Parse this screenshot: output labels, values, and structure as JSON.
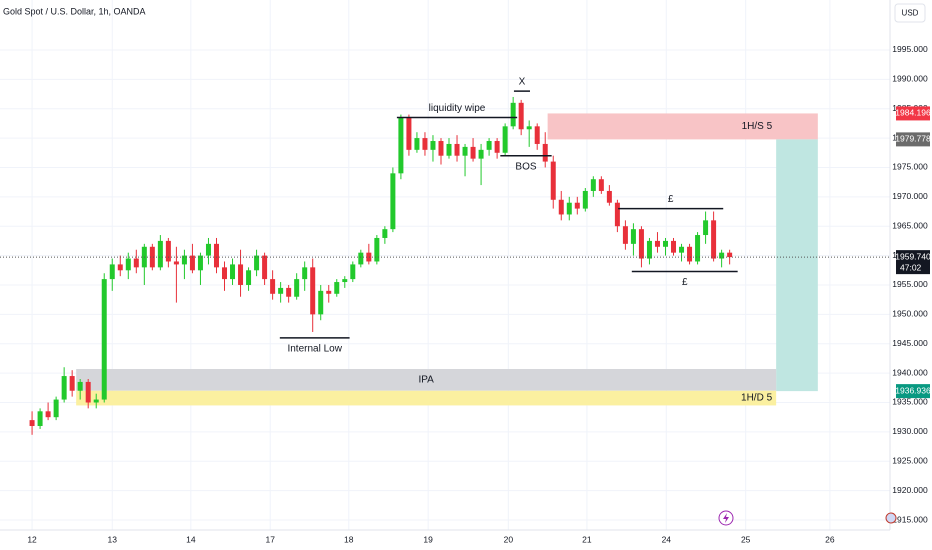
{
  "chart_data": {
    "type": "candlestick",
    "title": "Gold Spot / U.S. Dollar, 1h, OANDA",
    "currency": "USD",
    "up_color": "#22c92c",
    "down_color": "#e8303a",
    "xlim": [
      -4,
      107
    ],
    "ylim": [
      1913.3,
      2003.5
    ],
    "xticks": [
      {
        "value": 0,
        "label": "12"
      },
      {
        "value": 10,
        "label": "13"
      },
      {
        "value": 19.8,
        "label": "14"
      },
      {
        "value": 29.7,
        "label": "17"
      },
      {
        "value": 39.5,
        "label": "18"
      },
      {
        "value": 49.4,
        "label": "19"
      },
      {
        "value": 59.4,
        "label": "20"
      },
      {
        "value": 69.2,
        "label": "21"
      },
      {
        "value": 79.1,
        "label": "24"
      },
      {
        "value": 89,
        "label": "25"
      },
      {
        "value": 99.5,
        "label": "26"
      }
    ],
    "yticks": [
      {
        "value": 1915,
        "label": "1915.000"
      },
      {
        "value": 1920,
        "label": "1920.000"
      },
      {
        "value": 1925,
        "label": "1925.000"
      },
      {
        "value": 1930,
        "label": "1930.000"
      },
      {
        "value": 1935,
        "label": "1935.000"
      },
      {
        "value": 1940,
        "label": "1940.000"
      },
      {
        "value": 1945,
        "label": "1945.000"
      },
      {
        "value": 1950,
        "label": "1950.000"
      },
      {
        "value": 1955,
        "label": "1955.000"
      },
      {
        "value": 1960,
        "label": "1960.000"
      },
      {
        "value": 1965,
        "label": "1965.000"
      },
      {
        "value": 1970,
        "label": "1970.000"
      },
      {
        "value": 1975,
        "label": "1975.000"
      },
      {
        "value": 1980,
        "label": "1980.000"
      },
      {
        "value": 1985,
        "label": "1985.000"
      },
      {
        "value": 1990,
        "label": "1990.000"
      },
      {
        "value": 1995,
        "label": "1995.000"
      }
    ],
    "grid": true,
    "candles": [
      [
        1932,
        1933.5,
        1929.5,
        1931
      ],
      [
        1931,
        1934,
        1930.5,
        1933.5
      ],
      [
        1933.5,
        1935,
        1932,
        1932.5
      ],
      [
        1932.5,
        1936,
        1932,
        1935.5
      ],
      [
        1935.5,
        1941,
        1935,
        1939.5
      ],
      [
        1939.5,
        1940.5,
        1936,
        1937
      ],
      [
        1937,
        1939,
        1935.5,
        1938.5
      ],
      [
        1938.5,
        1939,
        1934,
        1935
      ],
      [
        1935,
        1936.5,
        1934,
        1935.5
      ],
      [
        1935.5,
        1957,
        1935,
        1956
      ],
      [
        1956,
        1959.5,
        1954,
        1958.5
      ],
      [
        1958.5,
        1960,
        1956.5,
        1957.5
      ],
      [
        1957.5,
        1960.5,
        1956,
        1959.5
      ],
      [
        1959.5,
        1961,
        1957,
        1958
      ],
      [
        1958,
        1962,
        1955,
        1961.5
      ],
      [
        1961.5,
        1962,
        1957.5,
        1958
      ],
      [
        1958,
        1963.5,
        1957.5,
        1962.5
      ],
      [
        1962.5,
        1963,
        1958,
        1959
      ],
      [
        1959,
        1961.5,
        1952,
        1958.5
      ],
      [
        1958.5,
        1961,
        1956,
        1960
      ],
      [
        1960,
        1962,
        1957,
        1957.5
      ],
      [
        1957.5,
        1960.5,
        1955,
        1960
      ],
      [
        1960,
        1963,
        1958.5,
        1962
      ],
      [
        1962,
        1963,
        1957,
        1958
      ],
      [
        1958,
        1959,
        1954,
        1956
      ],
      [
        1956,
        1959.5,
        1955,
        1958.5
      ],
      [
        1958.5,
        1961,
        1953,
        1955
      ],
      [
        1955,
        1958,
        1954,
        1957.5
      ],
      [
        1957.5,
        1961,
        1956.5,
        1960
      ],
      [
        1960,
        1960.5,
        1955,
        1956
      ],
      [
        1956,
        1957.5,
        1952.5,
        1953.5
      ],
      [
        1953.5,
        1955.5,
        1952,
        1954.5
      ],
      [
        1954.5,
        1955,
        1952,
        1953
      ],
      [
        1953,
        1957,
        1952.5,
        1956
      ],
      [
        1956,
        1959,
        1954,
        1958
      ],
      [
        1958,
        1959.5,
        1947,
        1950
      ],
      [
        1950,
        1955,
        1949,
        1954
      ],
      [
        1954,
        1955,
        1952,
        1953.5
      ],
      [
        1953.5,
        1956,
        1953,
        1955.5
      ],
      [
        1955.5,
        1956.5,
        1954.5,
        1956
      ],
      [
        1956,
        1959,
        1955.5,
        1958.5
      ],
      [
        1958.5,
        1961,
        1958,
        1960.5
      ],
      [
        1960.5,
        1962,
        1958.5,
        1959
      ],
      [
        1959,
        1963.5,
        1958.5,
        1963
      ],
      [
        1963,
        1965,
        1962,
        1964.5
      ],
      [
        1964.5,
        1975,
        1964,
        1974
      ],
      [
        1974,
        1984,
        1973,
        1983.5
      ],
      [
        1983.5,
        1984,
        1977,
        1978
      ],
      [
        1978,
        1981,
        1977.5,
        1980
      ],
      [
        1980,
        1981,
        1977,
        1978
      ],
      [
        1978,
        1980.5,
        1976,
        1979.5
      ],
      [
        1979.5,
        1980,
        1975.5,
        1977
      ],
      [
        1977,
        1980,
        1976.5,
        1979
      ],
      [
        1979,
        1980.5,
        1976,
        1977
      ],
      [
        1977,
        1979,
        1973.5,
        1978.5
      ],
      [
        1978.5,
        1980,
        1976,
        1976.5
      ],
      [
        1976.5,
        1979,
        1972,
        1978
      ],
      [
        1978,
        1980,
        1977,
        1979.5
      ],
      [
        1979.5,
        1980,
        1976.5,
        1977.5
      ],
      [
        1977.5,
        1982.5,
        1977,
        1982
      ],
      [
        1982,
        1987,
        1981.5,
        1986
      ],
      [
        1986,
        1986.5,
        1980.5,
        1981.5
      ],
      [
        1981.5,
        1983,
        1978.5,
        1982
      ],
      [
        1982,
        1982.5,
        1978,
        1979
      ],
      [
        1979,
        1981,
        1975,
        1976
      ],
      [
        1976,
        1977,
        1968,
        1969.5
      ],
      [
        1969.5,
        1971,
        1966,
        1967
      ],
      [
        1967,
        1970,
        1966,
        1969
      ],
      [
        1969,
        1970,
        1967,
        1968
      ],
      [
        1968,
        1971.5,
        1967.5,
        1971
      ],
      [
        1971,
        1973.5,
        1970,
        1973
      ],
      [
        1973,
        1973.5,
        1970.5,
        1971
      ],
      [
        1971,
        1972,
        1968.5,
        1969
      ],
      [
        1969,
        1969.5,
        1964,
        1965
      ],
      [
        1965,
        1966,
        1961,
        1962
      ],
      [
        1962,
        1965.5,
        1960,
        1964.5
      ],
      [
        1964.5,
        1965,
        1958,
        1959.5
      ],
      [
        1959.5,
        1963,
        1958.5,
        1962.5
      ],
      [
        1962.5,
        1964,
        1960.5,
        1961.5
      ],
      [
        1961.5,
        1963,
        1960,
        1962.5
      ],
      [
        1962.5,
        1963,
        1960,
        1960.5
      ],
      [
        1960.5,
        1962,
        1959,
        1961.5
      ],
      [
        1961.5,
        1962,
        1958.5,
        1959
      ],
      [
        1959,
        1964,
        1958.5,
        1963.5
      ],
      [
        1963.5,
        1967.5,
        1962,
        1966
      ],
      [
        1966,
        1967.5,
        1959,
        1959.5
      ],
      [
        1959.5,
        1961,
        1958,
        1960.5
      ],
      [
        1960.5,
        1961,
        1958.5,
        1959.74
      ]
    ],
    "zones": [
      {
        "label": "1H/S 5",
        "high": 1984.196,
        "low": 1979.778,
        "from": 64.3,
        "to": 98,
        "color": "#f8c4c6"
      },
      {
        "high": 1979.778,
        "low": 1936.936,
        "from": 92.8,
        "to": 98,
        "color": "#bfe6e1"
      },
      {
        "label": "IPA",
        "high": 1940.7,
        "low": 1937,
        "from": 5.5,
        "to": 92.8,
        "color": "#d5d6da"
      },
      {
        "label": "1H/D 5",
        "high": 1937,
        "low": 1934.5,
        "from": 5.5,
        "to": 92.8,
        "color": "#fbf0a0"
      }
    ],
    "lines": [
      {
        "label": "liquidity wipe",
        "price": 1983.5,
        "from": 45.5,
        "to": 60.5
      },
      {
        "label": "X",
        "price": 1988,
        "from": 60.1,
        "to": 62.1
      },
      {
        "label": "BOS",
        "price": 1977,
        "from": 58.4,
        "to": 64.8
      },
      {
        "label": "Internal Low",
        "price": 1946,
        "from": 30.9,
        "to": 39.6
      },
      {
        "label": "£",
        "price": 1968,
        "from": 73.1,
        "to": 86.2
      },
      {
        "label": "£",
        "price": 1957.3,
        "from": 74.8,
        "to": 88
      }
    ],
    "price_tags": [
      {
        "value": 1984.196,
        "color": "#f23645"
      },
      {
        "value": 1979.778,
        "color": "#6b6b6b"
      },
      {
        "value": 1959.74,
        "label": "1959.740",
        "timer": "47:02",
        "color": "#131722"
      },
      {
        "value": 1936.936,
        "color": "#089981"
      }
    ]
  }
}
